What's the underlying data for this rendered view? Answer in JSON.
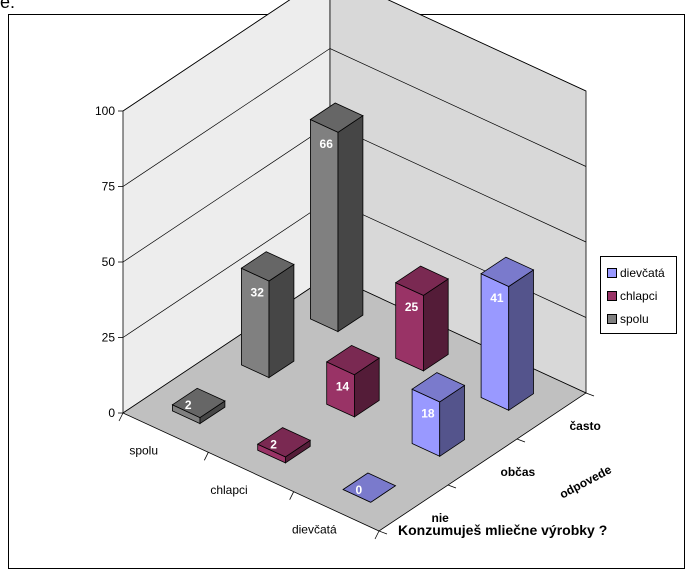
{
  "page": {
    "title_fragment": "e:"
  },
  "chart_data": {
    "type": "bar",
    "title": "Konzumuješ mliečne výrobky ?",
    "depth_axis_label": "odpovede",
    "ylim": [
      0,
      100
    ],
    "y_ticks": [
      "0",
      "25",
      "50",
      "75",
      "100"
    ],
    "categories": [
      "spolu",
      "chlapci",
      "dievčatá"
    ],
    "depth_categories": [
      "nie",
      "občas",
      "často"
    ],
    "series": [
      {
        "name": "dievčatá",
        "color": "#9999ff",
        "values": [
          0,
          18,
          41
        ]
      },
      {
        "name": "chlapci",
        "color": "#993366",
        "values": [
          2,
          14,
          25
        ]
      },
      {
        "name": "spolu",
        "color": "#808080",
        "values": [
          2,
          32,
          66
        ]
      }
    ],
    "grid": true,
    "legend_position": "right"
  }
}
